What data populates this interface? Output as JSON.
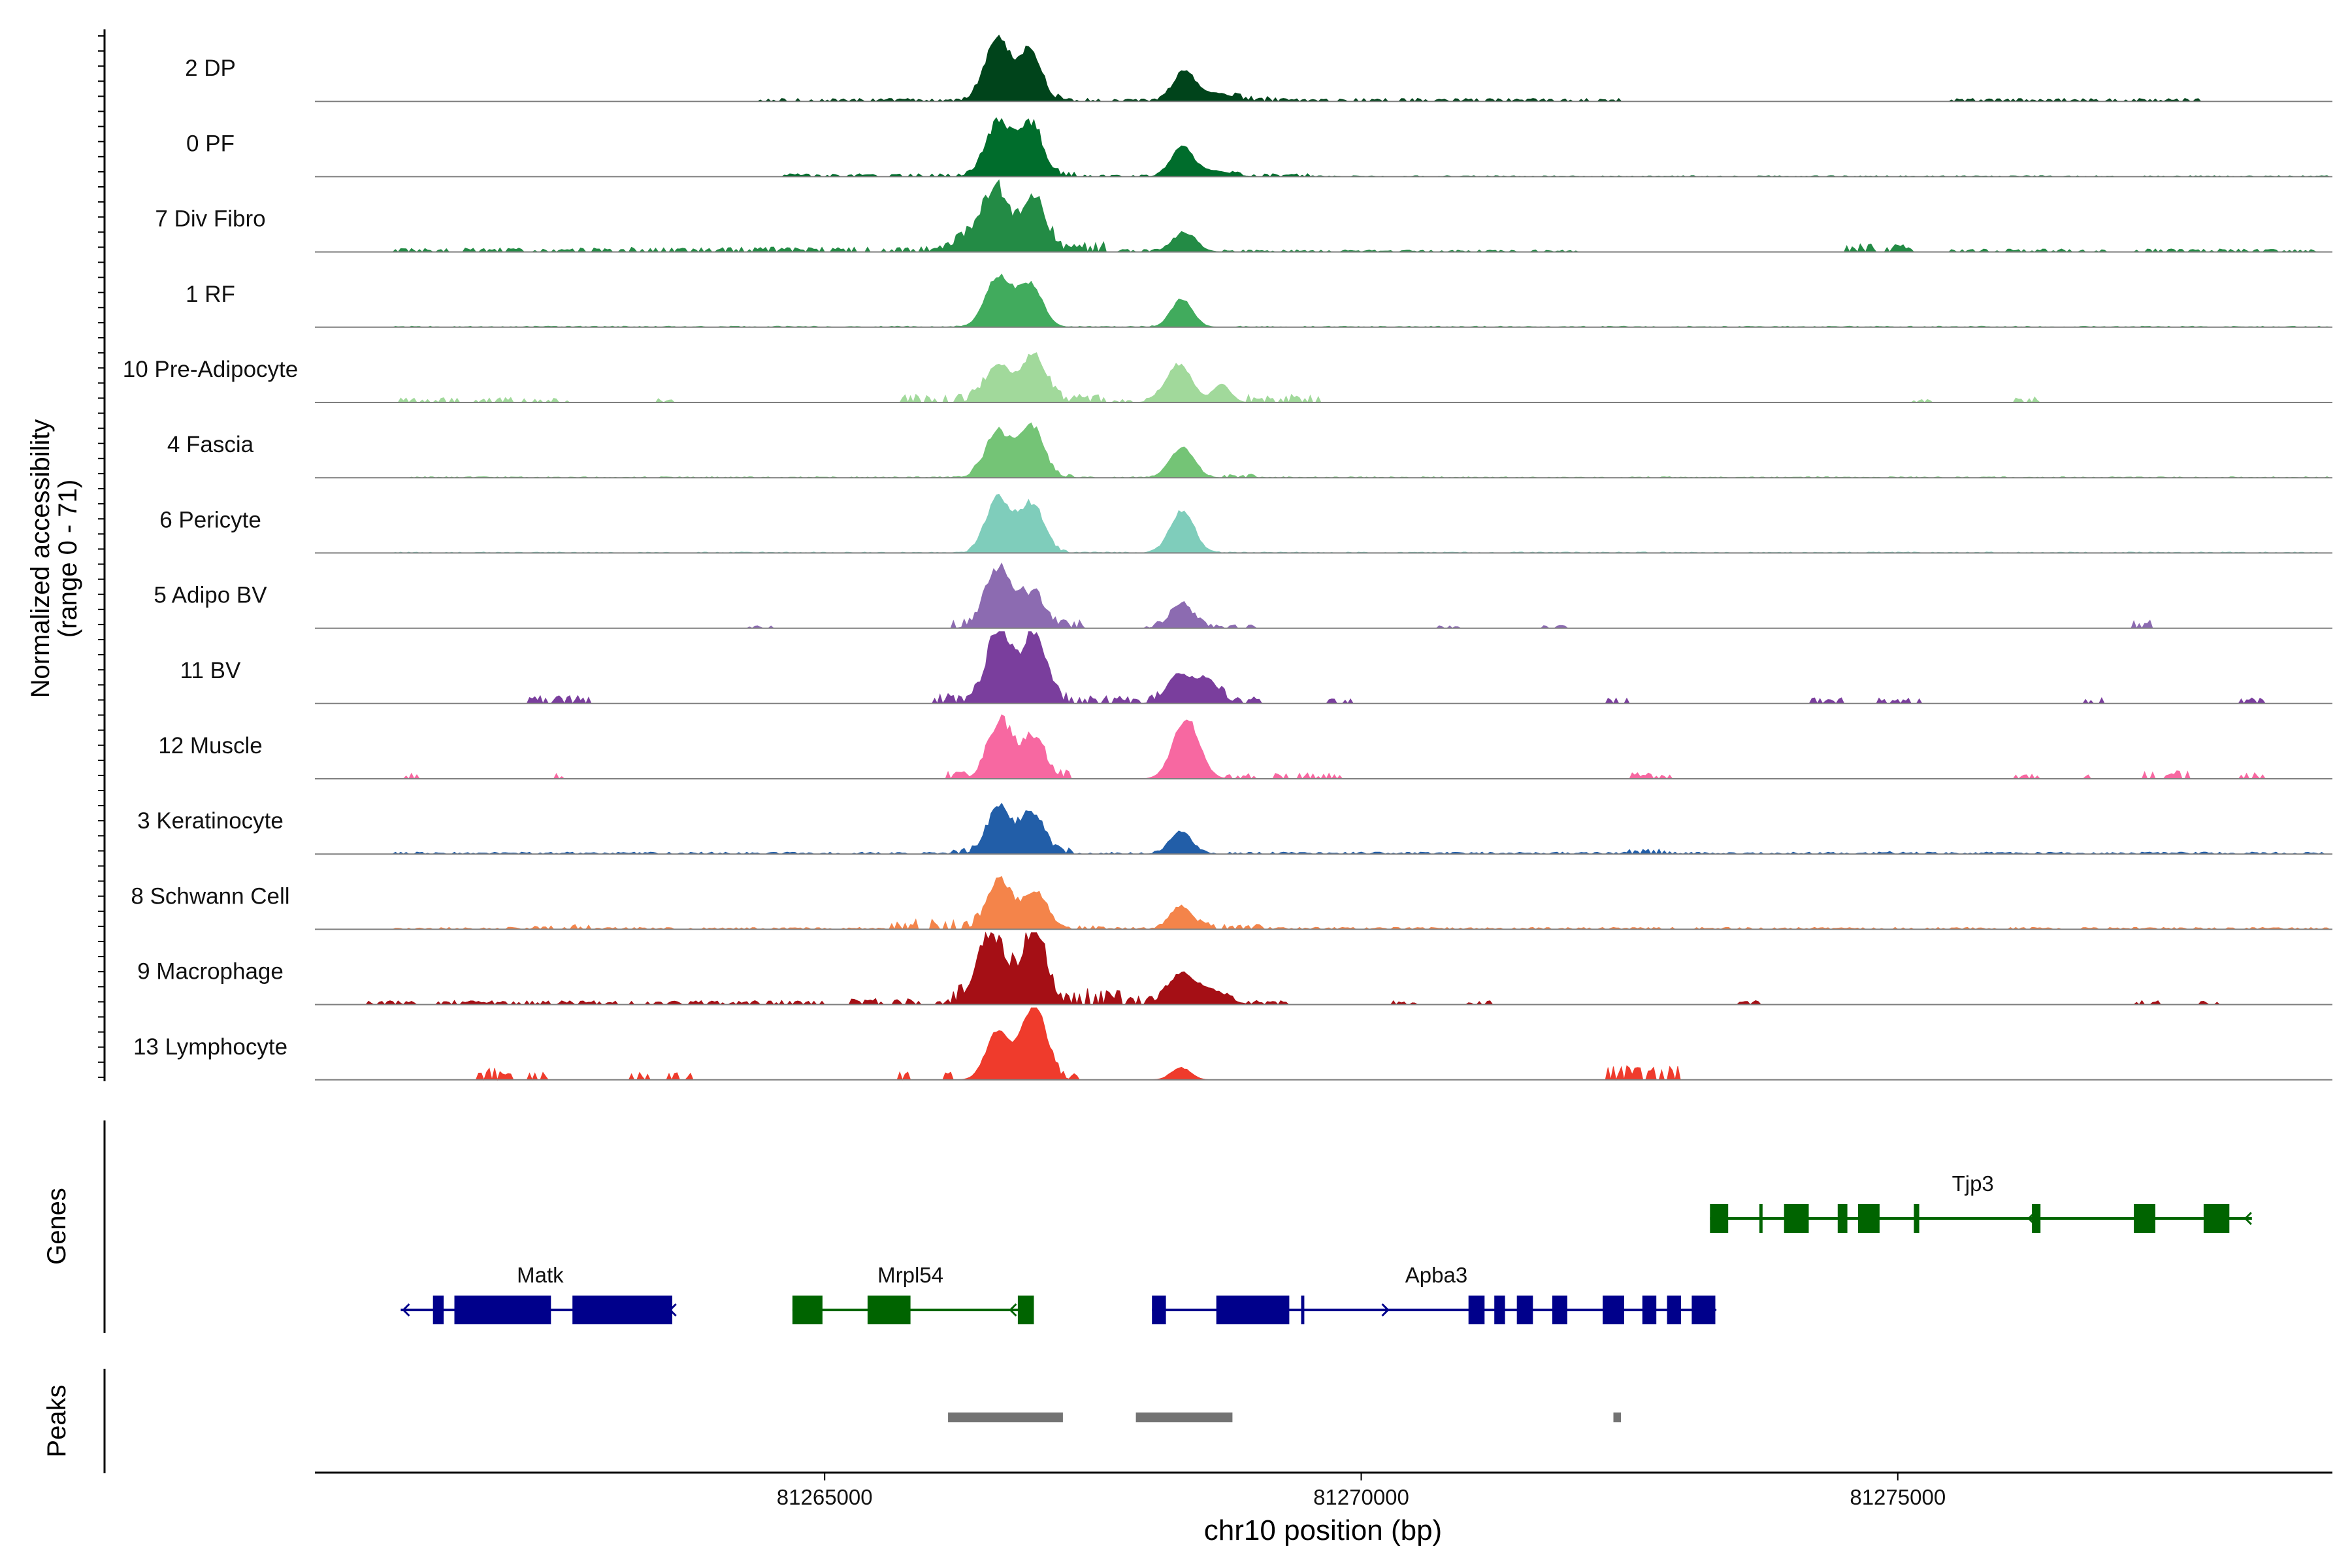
{
  "chart_data": {
    "type": "area",
    "title": "",
    "ylabel": "Normalized accessibility",
    "ylabel_range": "(range 0 - 71)",
    "xlabel": "chr10 position (bp)",
    "xlim": [
      81260250,
      81279050
    ],
    "ylim": [
      0,
      71
    ],
    "x_ticks": [
      {
        "value": 81265000,
        "label": "81265000"
      },
      {
        "value": 81270000,
        "label": "81270000"
      },
      {
        "value": 81275000,
        "label": "81275000"
      }
    ],
    "tracks": [
      {
        "name": "2 DP",
        "color": "#00441b",
        "peaks": [
          [
            81266620,
            120,
            60
          ],
          [
            81266920,
            100,
            48
          ],
          [
            81268350,
            100,
            30
          ],
          [
            81268650,
            150,
            8
          ]
        ],
        "noise": [
          [
            81264400,
            81266400,
            3
          ],
          [
            81266400,
            81267200,
            6
          ],
          [
            81267200,
            81268200,
            3
          ],
          [
            81268800,
            81269200,
            5
          ],
          [
            81269200,
            81272400,
            3
          ],
          [
            81275500,
            81277800,
            3
          ]
        ]
      },
      {
        "name": "0 PF",
        "color": "#006d2c",
        "peaks": [
          [
            81266620,
            120,
            52
          ],
          [
            81266920,
            110,
            50
          ],
          [
            81268330,
            100,
            28
          ],
          [
            81268600,
            160,
            6
          ]
        ],
        "noise": [
          [
            81264600,
            81266400,
            3
          ],
          [
            81266400,
            81267400,
            6
          ],
          [
            81267400,
            81268200,
            2
          ],
          [
            81268800,
            81269500,
            3
          ],
          [
            81269500,
            81279000,
            1
          ]
        ]
      },
      {
        "name": "7 Div Fibro",
        "color": "#238b45",
        "peaks": [
          [
            81266600,
            120,
            58
          ],
          [
            81266950,
            110,
            52
          ],
          [
            81266350,
            150,
            12
          ],
          [
            81268350,
            110,
            18
          ]
        ],
        "noise": [
          [
            81261000,
            81263000,
            4
          ],
          [
            81263100,
            81266200,
            5
          ],
          [
            81266200,
            81267600,
            10
          ],
          [
            81267700,
            81268500,
            3
          ],
          [
            81268700,
            81272000,
            2
          ],
          [
            81274500,
            81275200,
            8
          ],
          [
            81275500,
            81278900,
            3
          ]
        ]
      },
      {
        "name": "1 RF",
        "color": "#41ab5d",
        "peaks": [
          [
            81266620,
            120,
            50
          ],
          [
            81266920,
            110,
            42
          ],
          [
            81268330,
            100,
            28
          ]
        ],
        "noise": [
          [
            81261000,
            81266300,
            1
          ],
          [
            81267300,
            81268100,
            1
          ],
          [
            81268800,
            81279000,
            1
          ]
        ]
      },
      {
        "name": "10 Pre-Adipocyte",
        "color": "#a1d99b",
        "peaks": [
          [
            81266620,
            120,
            38
          ],
          [
            81266950,
            110,
            48
          ],
          [
            81268300,
            120,
            38
          ],
          [
            81268700,
            80,
            18
          ]
        ],
        "noise": [
          [
            81261050,
            81262600,
            5
          ],
          [
            81263400,
            81263600,
            4
          ],
          [
            81265700,
            81266500,
            8
          ],
          [
            81267100,
            81267600,
            8
          ],
          [
            81267700,
            81268100,
            3
          ],
          [
            81268850,
            81269600,
            8
          ],
          [
            81275150,
            81275300,
            3
          ],
          [
            81276100,
            81276300,
            6
          ]
        ]
      },
      {
        "name": "4 Fascia",
        "color": "#74c476",
        "peaks": [
          [
            81266620,
            120,
            44
          ],
          [
            81266930,
            110,
            50
          ],
          [
            81268330,
            110,
            30
          ]
        ],
        "noise": [
          [
            81261000,
            81279000,
            1
          ],
          [
            81266300,
            81267300,
            4
          ],
          [
            81268700,
            81269000,
            4
          ]
        ]
      },
      {
        "name": "6 Pericyte",
        "color": "#7fcdbb",
        "peaks": [
          [
            81266620,
            110,
            55
          ],
          [
            81266930,
            110,
            48
          ],
          [
            81268330,
            110,
            42
          ]
        ],
        "noise": [
          [
            81261000,
            81279000,
            1
          ],
          [
            81266300,
            81267300,
            4
          ]
        ]
      },
      {
        "name": "5 Adipo BV",
        "color": "#8c6bb1",
        "peaks": [
          [
            81266620,
            120,
            58
          ],
          [
            81266940,
            110,
            32
          ],
          [
            81268330,
            110,
            22
          ]
        ],
        "noise": [
          [
            81266200,
            81267400,
            8
          ],
          [
            81268000,
            81269000,
            4
          ],
          [
            81270700,
            81270900,
            3
          ],
          [
            81271700,
            81271900,
            3
          ],
          [
            81277200,
            81277400,
            8
          ],
          [
            81264300,
            81264500,
            3
          ]
        ]
      },
      {
        "name": "11 BV",
        "color": "#7a3e9d",
        "peaks": [
          [
            81266620,
            110,
            72
          ],
          [
            81266950,
            110,
            68
          ],
          [
            81268300,
            110,
            28
          ],
          [
            81268560,
            110,
            24
          ]
        ],
        "noise": [
          [
            81262200,
            81262800,
            8
          ],
          [
            81266000,
            81267600,
            10
          ],
          [
            81267600,
            81268100,
            8
          ],
          [
            81268700,
            81269100,
            8
          ],
          [
            81269700,
            81269900,
            6
          ],
          [
            81272300,
            81272500,
            6
          ],
          [
            81274200,
            81274500,
            6
          ],
          [
            81274800,
            81275200,
            6
          ],
          [
            81276700,
            81276900,
            6
          ],
          [
            81278100,
            81278400,
            6
          ]
        ]
      },
      {
        "name": "12 Muscle",
        "color": "#f768a1",
        "peaks": [
          [
            81266630,
            110,
            55
          ],
          [
            81266940,
            110,
            40
          ],
          [
            81268370,
            120,
            60
          ]
        ],
        "noise": [
          [
            81261100,
            81261300,
            6
          ],
          [
            81262500,
            81262700,
            6
          ],
          [
            81266100,
            81267300,
            8
          ],
          [
            81268700,
            81269800,
            6
          ],
          [
            81272500,
            81272900,
            6
          ],
          [
            81276100,
            81276300,
            6
          ],
          [
            81276700,
            81276900,
            6
          ],
          [
            81277300,
            81277700,
            8
          ],
          [
            81278200,
            81278400,
            6
          ]
        ]
      },
      {
        "name": "3 Keratinocyte",
        "color": "#225ea8",
        "peaks": [
          [
            81266620,
            110,
            42
          ],
          [
            81266930,
            110,
            40
          ],
          [
            81268320,
            100,
            22
          ]
        ],
        "noise": [
          [
            81261000,
            81279000,
            2
          ],
          [
            81266200,
            81267300,
            6
          ],
          [
            81272500,
            81272900,
            5
          ],
          [
            81274700,
            81275000,
            3
          ]
        ]
      },
      {
        "name": "8 Schwann Cell",
        "color": "#f4844a",
        "peaks": [
          [
            81266630,
            110,
            50
          ],
          [
            81266960,
            110,
            38
          ],
          [
            81268320,
            100,
            22
          ]
        ],
        "noise": [
          [
            81261000,
            81279000,
            2
          ],
          [
            81262300,
            81262800,
            5
          ],
          [
            81265600,
            81266500,
            10
          ],
          [
            81267300,
            81267600,
            4
          ],
          [
            81268500,
            81269100,
            6
          ]
        ]
      },
      {
        "name": "9 Macrophage",
        "color": "#a50f15",
        "peaks": [
          [
            81266550,
            130,
            68
          ],
          [
            81266950,
            110,
            70
          ],
          [
            81268320,
            120,
            30
          ],
          [
            81268600,
            140,
            14
          ]
        ],
        "noise": [
          [
            81260700,
            81265000,
            4
          ],
          [
            81265200,
            81266300,
            6
          ],
          [
            81266200,
            81267800,
            16
          ],
          [
            81267800,
            81268200,
            8
          ],
          [
            81268700,
            81269300,
            4
          ],
          [
            81270300,
            81270500,
            4
          ],
          [
            81271000,
            81271200,
            4
          ],
          [
            81273500,
            81273700,
            4
          ],
          [
            81277200,
            81277500,
            4
          ],
          [
            81277800,
            81278000,
            4
          ]
        ]
      },
      {
        "name": "13 Lymphocyte",
        "color": "#ef3b2c",
        "peaks": [
          [
            81266620,
            110,
            50
          ],
          [
            81266950,
            110,
            75
          ],
          [
            81268320,
            90,
            12
          ]
        ],
        "noise": [
          [
            81261750,
            81262100,
            12
          ],
          [
            81262250,
            81262400,
            8
          ],
          [
            81263200,
            81263400,
            8
          ],
          [
            81263550,
            81263750,
            8
          ],
          [
            81265700,
            81265850,
            8
          ],
          [
            81266100,
            81266200,
            8
          ],
          [
            81267100,
            81267350,
            8
          ],
          [
            81272300,
            81272950,
            14
          ]
        ]
      }
    ],
    "genes": [
      {
        "name": "Matk",
        "color": "#00008b",
        "strand": "-",
        "start": 81261050,
        "end": 81263580,
        "row": 1,
        "exons": [
          [
            81261350,
            81261450
          ],
          [
            81261550,
            81262450
          ],
          [
            81262650,
            81263580
          ]
        ]
      },
      {
        "name": "Mrpl54",
        "color": "#006400",
        "strand": "-",
        "start": 81264700,
        "end": 81266950,
        "row": 1,
        "exons": [
          [
            81264700,
            81264980
          ],
          [
            81265400,
            81265800
          ],
          [
            81266800,
            81266950
          ]
        ]
      },
      {
        "name": "Apba3",
        "color": "#00008b",
        "strand": "+",
        "start": 81268050,
        "end": 81273300,
        "row": 1,
        "exons": [
          [
            81268050,
            81268180
          ],
          [
            81268650,
            81269330
          ],
          [
            81269440,
            81269470
          ],
          [
            81271000,
            81271150
          ],
          [
            81271240,
            81271340
          ],
          [
            81271450,
            81271600
          ],
          [
            81271780,
            81271920
          ],
          [
            81272250,
            81272450
          ],
          [
            81272620,
            81272750
          ],
          [
            81272850,
            81272980
          ],
          [
            81273080,
            81273300
          ]
        ]
      },
      {
        "name": "Tjp3",
        "color": "#006400",
        "strand": "-",
        "start": 81273250,
        "end": 81278300,
        "row": 0,
        "exons": [
          [
            81273250,
            81273420
          ],
          [
            81273710,
            81273740
          ],
          [
            81273940,
            81274170
          ],
          [
            81274440,
            81274530
          ],
          [
            81274630,
            81274830
          ],
          [
            81275150,
            81275200
          ],
          [
            81276250,
            81276330
          ],
          [
            81277200,
            81277400
          ],
          [
            81277850,
            81278090
          ]
        ]
      }
    ],
    "peaks_track": [
      [
        81266150,
        81267220
      ],
      [
        81267900,
        81268800
      ],
      [
        81272350,
        81272420
      ]
    ],
    "panel_labels": {
      "genes": "Genes",
      "peaks": "Peaks"
    },
    "peak_color": "#737373"
  }
}
